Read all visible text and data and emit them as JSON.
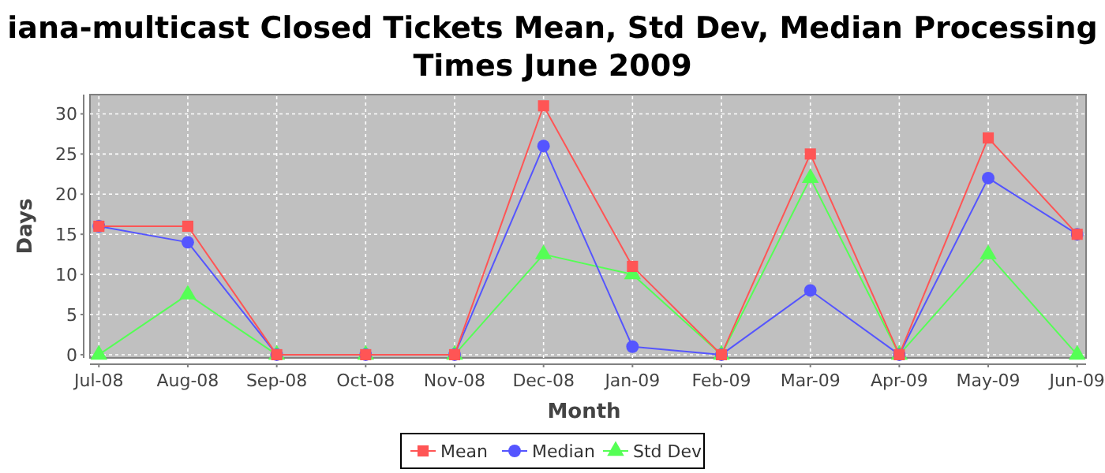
{
  "chart_data": {
    "type": "line",
    "title": "iana-multicast Closed Tickets Mean, Std Dev, Median Processing Times June 2009",
    "xlabel": "Month",
    "ylabel": "Days",
    "categories": [
      "Jul-08",
      "Aug-08",
      "Sep-08",
      "Oct-08",
      "Nov-08",
      "Dec-08",
      "Jan-09",
      "Feb-09",
      "Mar-09",
      "Apr-09",
      "May-09",
      "Jun-09"
    ],
    "series": [
      {
        "name": "Mean",
        "color": "#ff5555",
        "marker": "square",
        "values": [
          16,
          16,
          0,
          0,
          0,
          31,
          11,
          0,
          25,
          0,
          27,
          15
        ]
      },
      {
        "name": "Median",
        "color": "#5555ff",
        "marker": "circle",
        "values": [
          16,
          14,
          0,
          0,
          0,
          26,
          1,
          0,
          8,
          0,
          22,
          15
        ]
      },
      {
        "name": "Std Dev",
        "color": "#55ff55",
        "marker": "triangle",
        "values": [
          0,
          7.5,
          0,
          0,
          0,
          12.5,
          10,
          0,
          22,
          0,
          12.5,
          0
        ]
      }
    ],
    "ylim": [
      -0.4,
      32.4
    ],
    "yticks": [
      0,
      5,
      10,
      15,
      20,
      25,
      30
    ],
    "grid": true,
    "legend": "bottom",
    "line_style": "solid"
  }
}
